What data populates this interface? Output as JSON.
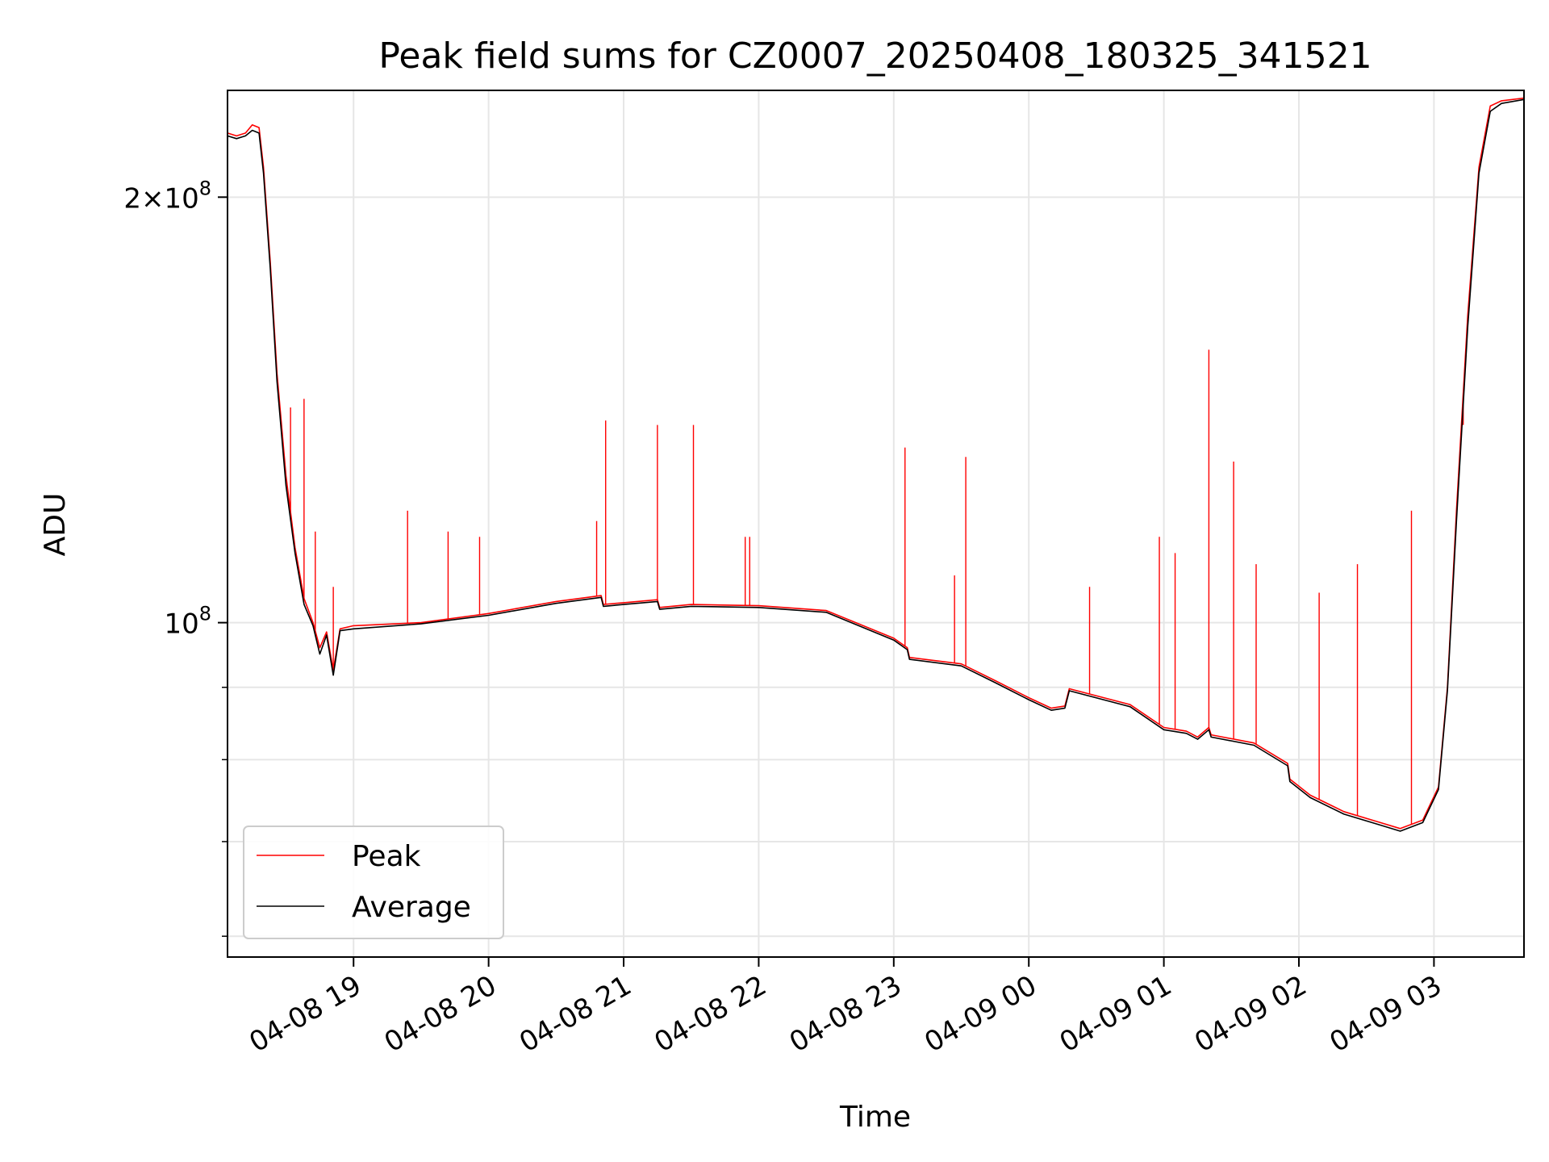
{
  "chart_data": {
    "type": "line",
    "title": "Peak field sums for CZ0007_20250408_180325_341521",
    "xlabel": "Time",
    "ylabel": "ADU",
    "yscale": "log",
    "ylim": [
      58000000,
      238000000
    ],
    "xlim": [
      "2025-04-08 18:04",
      "2025-04-09 03:40"
    ],
    "grid": true,
    "legend_position": "lower-left",
    "x_ticks": [
      {
        "t": "2025-04-08 19:00",
        "label": "04-08 19"
      },
      {
        "t": "2025-04-08 20:00",
        "label": "04-08 20"
      },
      {
        "t": "2025-04-08 21:00",
        "label": "04-08 21"
      },
      {
        "t": "2025-04-08 22:00",
        "label": "04-08 22"
      },
      {
        "t": "2025-04-08 23:00",
        "label": "04-08 23"
      },
      {
        "t": "2025-04-09 00:00",
        "label": "04-09 00"
      },
      {
        "t": "2025-04-09 01:00",
        "label": "04-09 01"
      },
      {
        "t": "2025-04-09 02:00",
        "label": "04-09 02"
      },
      {
        "t": "2025-04-09 03:00",
        "label": "04-09 03"
      }
    ],
    "y_ticks": [
      {
        "value": 200000000,
        "base": "2×10",
        "exp": "8"
      },
      {
        "value": 100000000,
        "base": "10",
        "exp": "8"
      }
    ],
    "y_minor_ticks": [
      60000000,
      70000000,
      80000000,
      90000000
    ],
    "series": [
      {
        "name": "Peak",
        "color": "#ff0000",
        "points": [
          [
            "2025-04-08 18:04",
            222000000
          ],
          [
            "2025-04-08 18:08",
            221000000
          ],
          [
            "2025-04-08 18:12",
            222000000
          ],
          [
            "2025-04-08 18:15",
            225000000
          ],
          [
            "2025-04-08 18:18",
            224000000
          ],
          [
            "2025-04-08 18:20",
            210000000
          ],
          [
            "2025-04-08 18:23",
            180000000
          ],
          [
            "2025-04-08 18:26",
            150000000
          ],
          [
            "2025-04-08 18:30",
            127000000
          ],
          [
            "2025-04-08 18:34",
            113000000
          ],
          [
            "2025-04-08 18:38",
            104000000
          ],
          [
            "2025-04-08 18:42",
            100000000
          ],
          [
            "2025-04-08 18:45",
            96000000
          ],
          [
            "2025-04-08 18:48",
            98500000
          ],
          [
            "2025-04-08 18:51",
            92500000
          ],
          [
            "2025-04-08 18:54",
            99000000
          ],
          [
            "2025-04-08 19:00",
            99500000
          ],
          [
            "2025-04-08 19:30",
            100000000
          ],
          [
            "2025-04-08 20:00",
            101500000
          ],
          [
            "2025-04-08 20:30",
            103500000
          ],
          [
            "2025-04-08 20:50",
            104500000
          ],
          [
            "2025-04-08 20:51",
            103000000
          ],
          [
            "2025-04-08 21:00",
            103300000
          ],
          [
            "2025-04-08 21:15",
            103800000
          ],
          [
            "2025-04-08 21:16",
            102500000
          ],
          [
            "2025-04-08 21:30",
            103000000
          ],
          [
            "2025-04-08 22:00",
            102800000
          ],
          [
            "2025-04-08 22:30",
            102000000
          ],
          [
            "2025-04-08 23:00",
            97500000
          ],
          [
            "2025-04-08 23:06",
            96000000
          ],
          [
            "2025-04-08 23:07",
            94500000
          ],
          [
            "2025-04-08 23:30",
            93500000
          ],
          [
            "2025-04-08 23:45",
            91000000
          ],
          [
            "2025-04-09 00:00",
            88500000
          ],
          [
            "2025-04-09 00:10",
            87000000
          ],
          [
            "2025-04-09 00:16",
            87300000
          ],
          [
            "2025-04-09 00:18",
            89800000
          ],
          [
            "2025-04-09 00:45",
            87500000
          ],
          [
            "2025-04-09 01:00",
            84300000
          ],
          [
            "2025-04-09 01:10",
            83800000
          ],
          [
            "2025-04-09 01:15",
            83000000
          ],
          [
            "2025-04-09 01:20",
            84300000
          ],
          [
            "2025-04-09 01:21",
            83300000
          ],
          [
            "2025-04-09 01:40",
            82200000
          ],
          [
            "2025-04-09 01:55",
            79500000
          ],
          [
            "2025-04-09 01:56",
            77500000
          ],
          [
            "2025-04-09 02:05",
            75500000
          ],
          [
            "2025-04-09 02:20",
            73500000
          ],
          [
            "2025-04-09 02:35",
            72300000
          ],
          [
            "2025-04-09 02:45",
            71500000
          ],
          [
            "2025-04-09 02:55",
            72500000
          ],
          [
            "2025-04-09 03:02",
            76500000
          ],
          [
            "2025-04-09 03:06",
            90000000
          ],
          [
            "2025-04-09 03:10",
            120000000
          ],
          [
            "2025-04-09 03:15",
            165000000
          ],
          [
            "2025-04-09 03:20",
            210000000
          ],
          [
            "2025-04-09 03:25",
            232000000
          ],
          [
            "2025-04-09 03:30",
            234000000
          ],
          [
            "2025-04-09 03:40",
            235000000
          ]
        ],
        "spikes": [
          [
            "2025-04-08 18:32",
            142000000
          ],
          [
            "2025-04-08 18:38",
            144000000
          ],
          [
            "2025-04-08 18:43",
            116000000
          ],
          [
            "2025-04-08 18:51",
            106000000
          ],
          [
            "2025-04-08 19:24",
            120000000
          ],
          [
            "2025-04-08 19:42",
            116000000
          ],
          [
            "2025-04-08 19:56",
            115000000
          ],
          [
            "2025-04-08 20:48",
            118000000
          ],
          [
            "2025-04-08 20:52",
            139000000
          ],
          [
            "2025-04-08 21:15",
            138000000
          ],
          [
            "2025-04-08 21:31",
            138000000
          ],
          [
            "2025-04-08 21:54",
            115000000
          ],
          [
            "2025-04-08 21:56",
            115000000
          ],
          [
            "2025-04-08 23:05",
            133000000
          ],
          [
            "2025-04-08 23:32",
            131000000
          ],
          [
            "2025-04-08 23:27",
            108000000
          ],
          [
            "2025-04-09 00:27",
            106000000
          ],
          [
            "2025-04-09 00:58",
            115000000
          ],
          [
            "2025-04-09 01:05",
            112000000
          ],
          [
            "2025-04-09 01:20",
            156000000
          ],
          [
            "2025-04-09 01:31",
            130000000
          ],
          [
            "2025-04-09 01:41",
            110000000
          ],
          [
            "2025-04-09 02:09",
            105000000
          ],
          [
            "2025-04-09 02:26",
            110000000
          ],
          [
            "2025-04-09 02:50",
            120000000
          ],
          [
            "2025-04-09 03:13",
            138000000
          ]
        ]
      },
      {
        "name": "Average",
        "color": "#000000",
        "points": [
          [
            "2025-04-08 18:04",
            221000000
          ],
          [
            "2025-04-08 18:08",
            220000000
          ],
          [
            "2025-04-08 18:12",
            221000000
          ],
          [
            "2025-04-08 18:15",
            223000000
          ],
          [
            "2025-04-08 18:18",
            222000000
          ],
          [
            "2025-04-08 18:20",
            208000000
          ],
          [
            "2025-04-08 18:23",
            178000000
          ],
          [
            "2025-04-08 18:26",
            148000000
          ],
          [
            "2025-04-08 18:30",
            125000000
          ],
          [
            "2025-04-08 18:34",
            112000000
          ],
          [
            "2025-04-08 18:38",
            103000000
          ],
          [
            "2025-04-08 18:42",
            99500000
          ],
          [
            "2025-04-08 18:45",
            95000000
          ],
          [
            "2025-04-08 18:48",
            98000000
          ],
          [
            "2025-04-08 18:51",
            91800000
          ],
          [
            "2025-04-08 18:54",
            98700000
          ],
          [
            "2025-04-08 19:00",
            99000000
          ],
          [
            "2025-04-08 19:30",
            99800000
          ],
          [
            "2025-04-08 20:00",
            101200000
          ],
          [
            "2025-04-08 20:30",
            103200000
          ],
          [
            "2025-04-08 20:50",
            104200000
          ],
          [
            "2025-04-08 20:51",
            102700000
          ],
          [
            "2025-04-08 21:00",
            103000000
          ],
          [
            "2025-04-08 21:15",
            103500000
          ],
          [
            "2025-04-08 21:16",
            102200000
          ],
          [
            "2025-04-08 21:30",
            102700000
          ],
          [
            "2025-04-08 22:00",
            102500000
          ],
          [
            "2025-04-08 22:30",
            101700000
          ],
          [
            "2025-04-08 23:00",
            97200000
          ],
          [
            "2025-04-08 23:06",
            95700000
          ],
          [
            "2025-04-08 23:07",
            94200000
          ],
          [
            "2025-04-08 23:30",
            93200000
          ],
          [
            "2025-04-08 23:45",
            90700000
          ],
          [
            "2025-04-09 00:00",
            88200000
          ],
          [
            "2025-04-09 00:10",
            86700000
          ],
          [
            "2025-04-09 00:16",
            87000000
          ],
          [
            "2025-04-09 00:18",
            89500000
          ],
          [
            "2025-04-09 00:45",
            87200000
          ],
          [
            "2025-04-09 01:00",
            84000000
          ],
          [
            "2025-04-09 01:10",
            83500000
          ],
          [
            "2025-04-09 01:15",
            82700000
          ],
          [
            "2025-04-09 01:20",
            84000000
          ],
          [
            "2025-04-09 01:21",
            83000000
          ],
          [
            "2025-04-09 01:40",
            81900000
          ],
          [
            "2025-04-09 01:55",
            79200000
          ],
          [
            "2025-04-09 01:56",
            77200000
          ],
          [
            "2025-04-09 02:05",
            75200000
          ],
          [
            "2025-04-09 02:20",
            73200000
          ],
          [
            "2025-04-09 02:35",
            72000000
          ],
          [
            "2025-04-09 02:45",
            71200000
          ],
          [
            "2025-04-09 02:55",
            72200000
          ],
          [
            "2025-04-09 03:02",
            76200000
          ],
          [
            "2025-04-09 03:06",
            89500000
          ],
          [
            "2025-04-09 03:10",
            118000000
          ],
          [
            "2025-04-09 03:15",
            162000000
          ],
          [
            "2025-04-09 03:20",
            208000000
          ],
          [
            "2025-04-09 03:25",
            230000000
          ],
          [
            "2025-04-09 03:30",
            233000000
          ],
          [
            "2025-04-09 03:40",
            234500000
          ]
        ]
      }
    ]
  }
}
